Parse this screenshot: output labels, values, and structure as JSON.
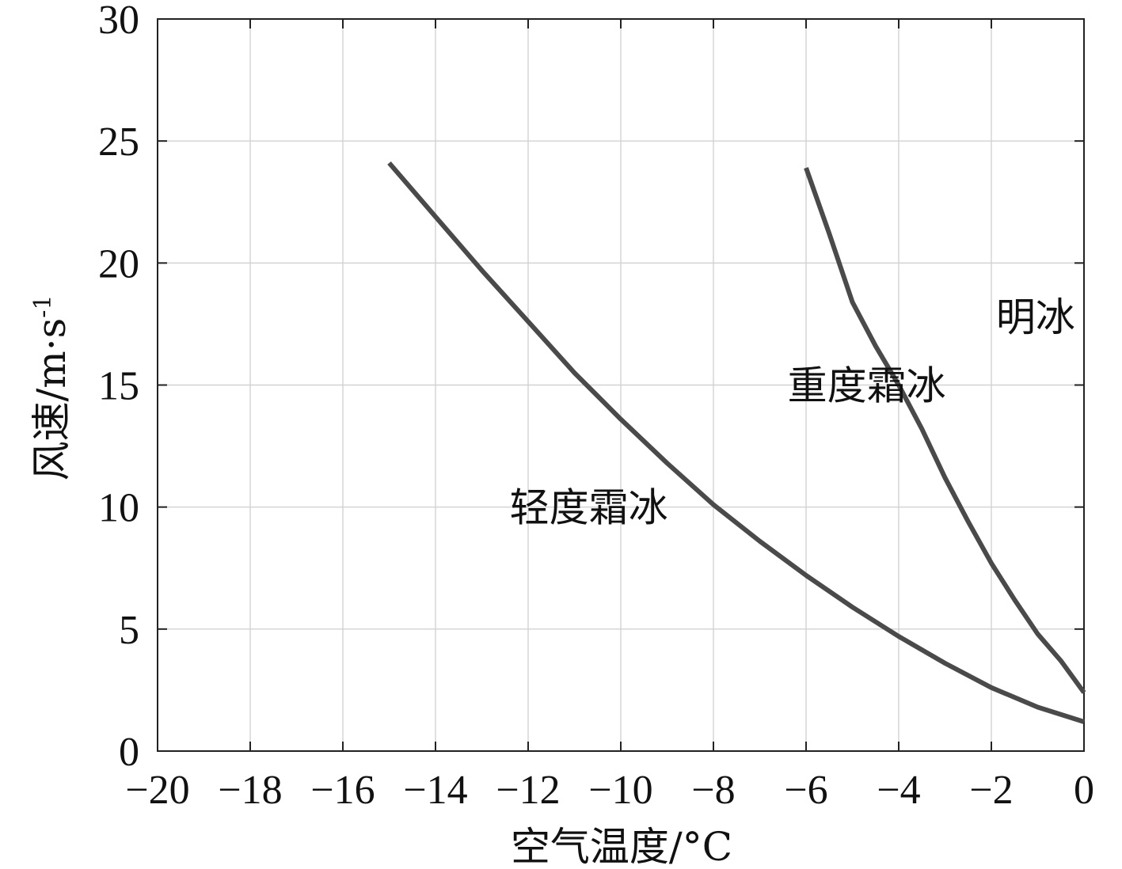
{
  "chart_data": {
    "type": "line",
    "title": "",
    "xlabel": "空气温度/°C",
    "ylabel_main": "风速/m·s",
    "ylabel_sup": "-1",
    "xlim": [
      -20,
      0
    ],
    "ylim": [
      0,
      30
    ],
    "x_ticks": [
      -20,
      -18,
      -16,
      -14,
      -12,
      -10,
      -8,
      -6,
      -4,
      -2,
      0
    ],
    "x_tick_labels": [
      "−20",
      "−18",
      "−16",
      "−14",
      "−12",
      "−10",
      "−8",
      "−6",
      "−4",
      "−2",
      "0"
    ],
    "y_ticks": [
      0,
      5,
      10,
      15,
      20,
      25,
      30
    ],
    "y_tick_labels": [
      "0",
      "5",
      "10",
      "15",
      "20",
      "25",
      "30"
    ],
    "grid": true,
    "series": [
      {
        "color": "#4a4a4a",
        "x": [
          -15,
          -14,
          -13,
          -12,
          -11,
          -10,
          -9,
          -8,
          -7,
          -6,
          -5,
          -4,
          -3,
          -2,
          -1,
          0
        ],
        "y": [
          24.1,
          21.9,
          19.7,
          17.6,
          15.5,
          13.6,
          11.8,
          10.1,
          8.6,
          7.2,
          5.9,
          4.7,
          3.6,
          2.6,
          1.8,
          1.2
        ]
      },
      {
        "color": "#4a4a4a",
        "x": [
          -6,
          -5.5,
          -5,
          -4.5,
          -4,
          -3.5,
          -3,
          -2.5,
          -2,
          -1.5,
          -1,
          -0.5,
          0
        ],
        "y": [
          23.9,
          21.2,
          18.4,
          16.6,
          15.0,
          13.2,
          11.2,
          9.4,
          7.7,
          6.2,
          4.8,
          3.7,
          2.4
        ]
      }
    ],
    "annotations": [
      {
        "text": "轻度霜冰",
        "x": -12.4,
        "y": 10.0
      },
      {
        "text": "重度霜冰",
        "x": -6.4,
        "y": 15.0
      },
      {
        "text": "明冰",
        "x": -1.9,
        "y": 17.8
      }
    ]
  }
}
